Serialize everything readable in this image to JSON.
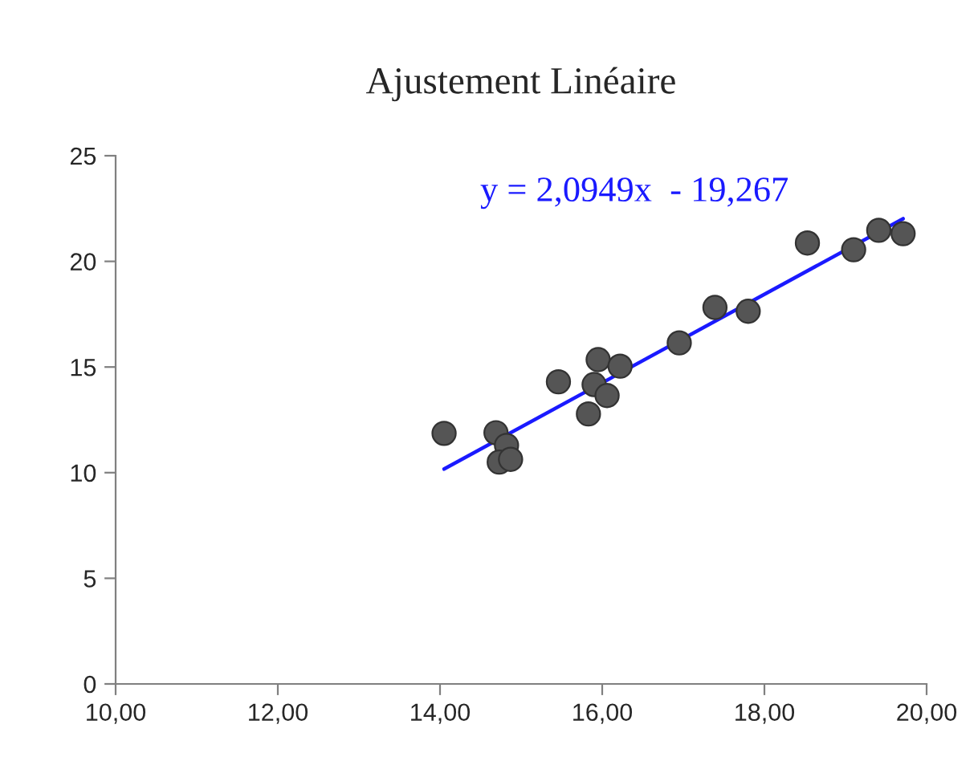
{
  "chart_data": {
    "type": "scatter",
    "title": "Ajustement Linéaire",
    "x": [
      14.05,
      14.69,
      14.82,
      14.73,
      14.87,
      15.46,
      15.83,
      15.95,
      15.9,
      16.06,
      16.22,
      16.95,
      17.39,
      17.8,
      18.53,
      19.1,
      19.41,
      19.71
    ],
    "series": [
      {
        "color": "#555555",
        "values": [
          11.86,
          11.89,
          11.29,
          10.5,
          10.63,
          14.3,
          12.78,
          15.35,
          14.17,
          13.65,
          15.04,
          16.14,
          17.82,
          17.64,
          20.87,
          20.55,
          21.47,
          21.31
        ]
      },
      {
        "type": "line",
        "marker": "none",
        "color": "#1a1aff",
        "x": [
          14.05,
          19.71
        ],
        "values": [
          10.17,
          22.02
        ]
      }
    ],
    "annotations": [
      "y = 2,0949x  - 19,267"
    ],
    "xlim": [
      10,
      20
    ],
    "xticks": [
      {
        "value": 10,
        "label": "10,00"
      },
      {
        "value": 12,
        "label": "12,00"
      },
      {
        "value": 14,
        "label": "14,00"
      },
      {
        "value": 16,
        "label": "16,00"
      },
      {
        "value": 18,
        "label": "18,00"
      },
      {
        "value": 20,
        "label": "20,00"
      }
    ],
    "ylim": [
      0,
      25
    ],
    "yticks": [
      0,
      5,
      10,
      15,
      20,
      25
    ],
    "marker": "circle",
    "grid": false,
    "legend": false
  }
}
